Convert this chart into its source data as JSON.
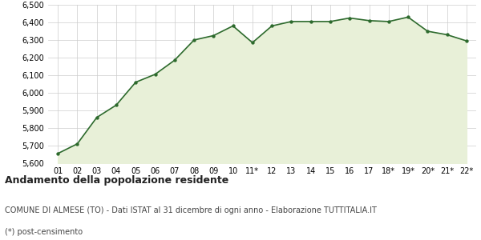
{
  "x_labels": [
    "01",
    "02",
    "03",
    "04",
    "05",
    "06",
    "07",
    "08",
    "09",
    "10",
    "11*",
    "12",
    "13",
    "14",
    "15",
    "16",
    "17",
    "18*",
    "19*",
    "20*",
    "21*",
    "22*"
  ],
  "y_values": [
    5655,
    5710,
    5860,
    5930,
    6060,
    6105,
    6185,
    6300,
    6325,
    6380,
    6285,
    6380,
    6405,
    6405,
    6405,
    6425,
    6410,
    6405,
    6430,
    6350,
    6330,
    6295
  ],
  "line_color": "#2d6a2d",
  "fill_color": "#e8f0d8",
  "marker_color": "#2d6a2d",
  "bg_color": "#ffffff",
  "grid_color": "#cccccc",
  "ylim": [
    5600,
    6500
  ],
  "yticks": [
    5600,
    5700,
    5800,
    5900,
    6000,
    6100,
    6200,
    6300,
    6400,
    6500
  ],
  "title": "Andamento della popolazione residente",
  "subtitle": "COMUNE DI ALMESE (TO) - Dati ISTAT al 31 dicembre di ogni anno - Elaborazione TUTTITALIA.IT",
  "footnote": "(*) post-censimento",
  "title_fontsize": 9,
  "subtitle_fontsize": 7,
  "footnote_fontsize": 7,
  "tick_fontsize": 7
}
